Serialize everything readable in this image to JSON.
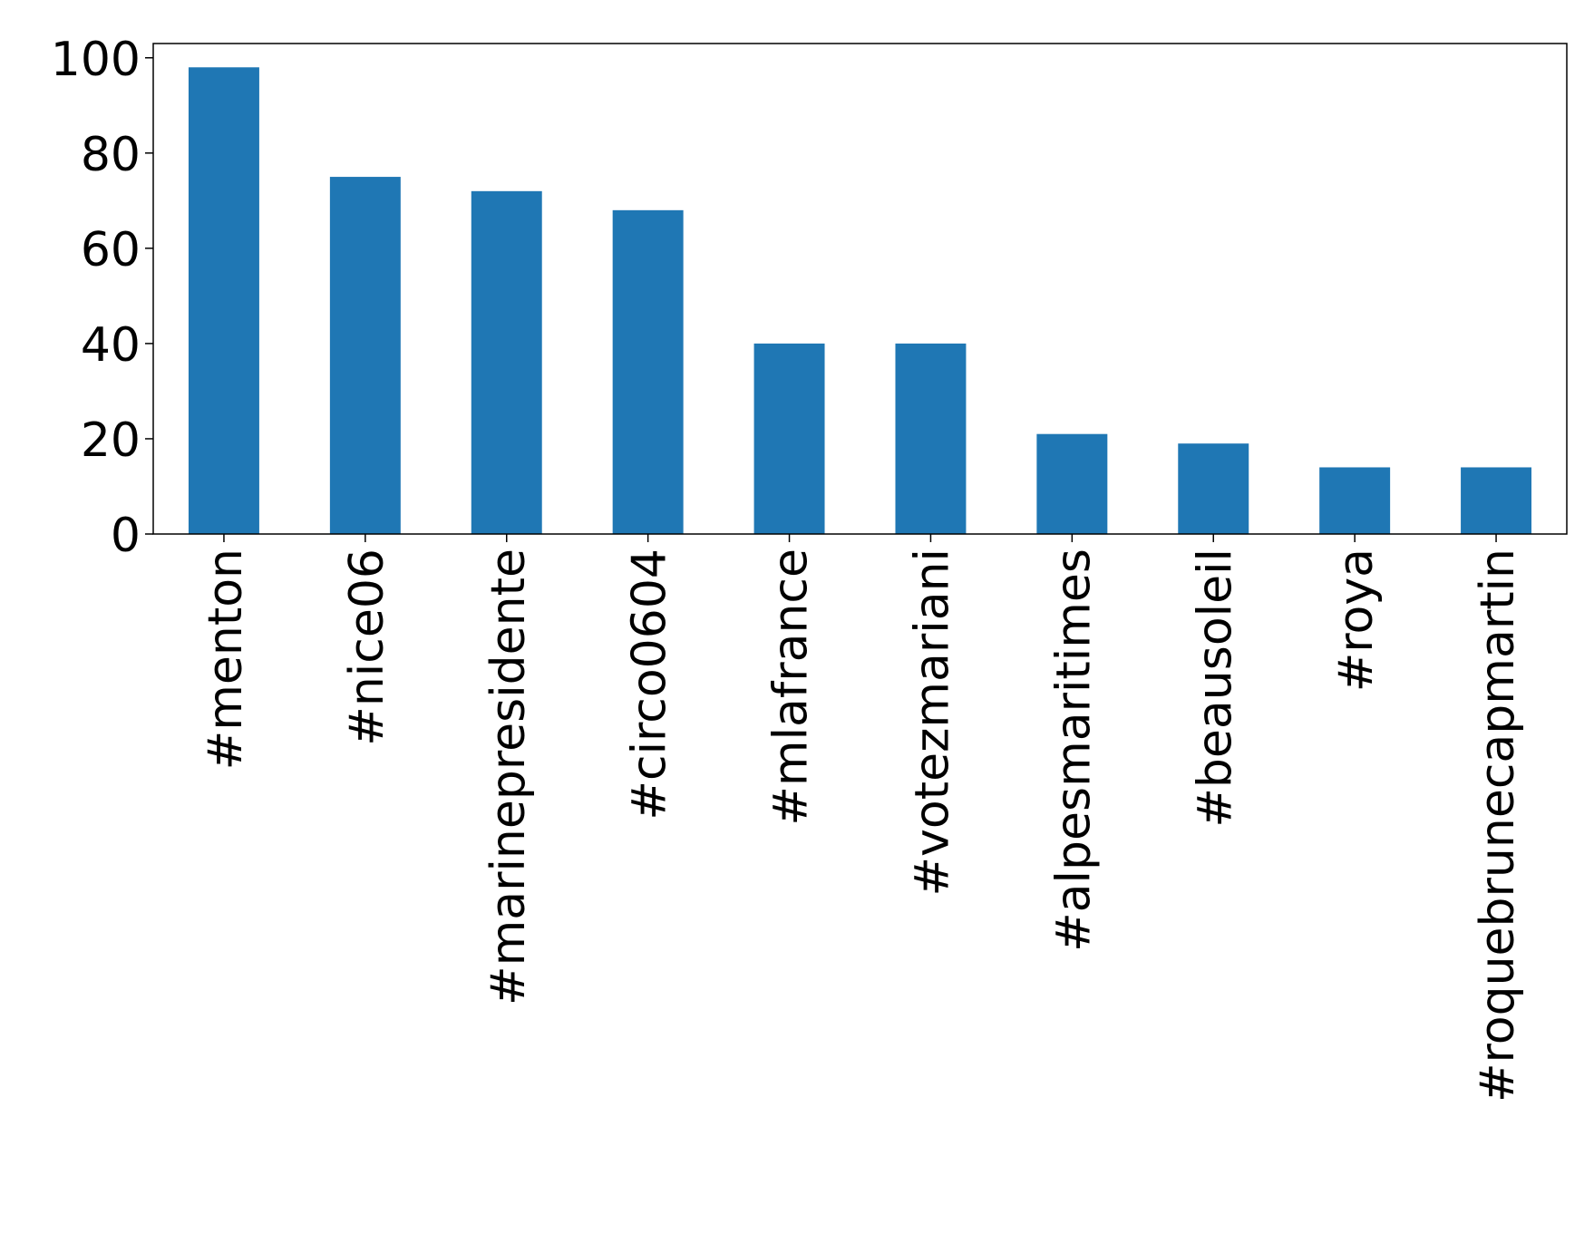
{
  "chart_data": {
    "type": "bar",
    "categories": [
      "#menton",
      "#nice06",
      "#marinepresidente",
      "#circo0604",
      "#mlafrance",
      "#votezmariani",
      "#alpesmaritimes",
      "#beausoleil",
      "#roya",
      "#roquebrunecapmartin"
    ],
    "values": [
      98,
      75,
      72,
      68,
      40,
      40,
      21,
      19,
      14,
      14
    ],
    "color": "#1f77b4",
    "ylim": [
      0,
      103
    ],
    "yticks": [
      0,
      20,
      40,
      60,
      80,
      100
    ],
    "grid": false
  }
}
